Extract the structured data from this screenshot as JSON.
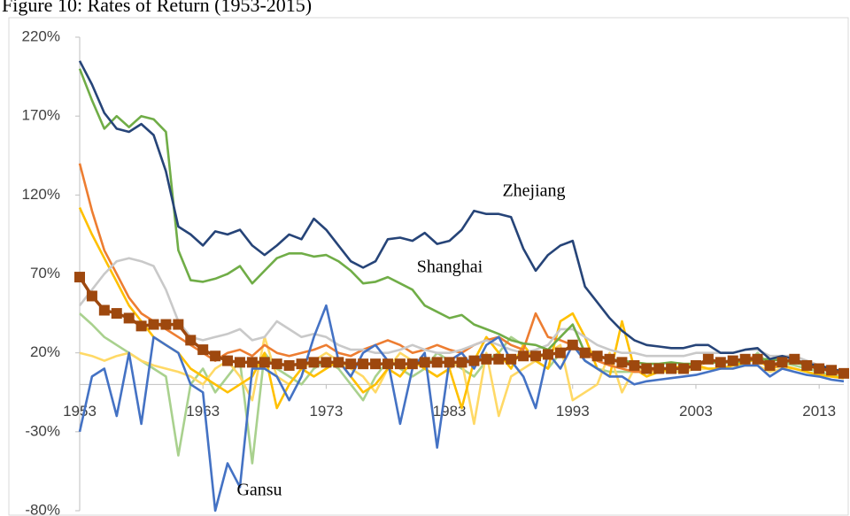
{
  "chart_data": {
    "type": "line",
    "title": "Figure 10: Rates of Return (1953-2015)",
    "annotations": [
      "Zhejiang",
      "Shanghai",
      "Gansu"
    ],
    "x": [
      1953,
      1954,
      1955,
      1956,
      1957,
      1958,
      1959,
      1960,
      1961,
      1962,
      1963,
      1964,
      1965,
      1966,
      1967,
      1968,
      1969,
      1970,
      1971,
      1972,
      1973,
      1974,
      1975,
      1976,
      1977,
      1978,
      1979,
      1980,
      1981,
      1982,
      1983,
      1984,
      1985,
      1986,
      1987,
      1988,
      1989,
      1990,
      1991,
      1992,
      1993,
      1994,
      1995,
      1996,
      1997,
      1998,
      1999,
      2000,
      2001,
      2002,
      2003,
      2004,
      2005,
      2006,
      2007,
      2008,
      2009,
      2010,
      2011,
      2012,
      2013,
      2014,
      2015
    ],
    "xlim": [
      1953,
      2015
    ],
    "xticks": [
      1953,
      1963,
      1973,
      1983,
      1993,
      2003,
      2013
    ],
    "ylim": [
      -80,
      220
    ],
    "yticks": [
      {
        "value": -80,
        "label": "-80%"
      },
      {
        "value": -30,
        "label": "-30%"
      },
      {
        "value": 20,
        "label": "20%"
      },
      {
        "value": 70,
        "label": "70%"
      },
      {
        "value": 120,
        "label": "120%"
      },
      {
        "value": 170,
        "label": "170%"
      },
      {
        "value": 220,
        "label": "220%"
      }
    ],
    "grid": false,
    "series": [
      {
        "color": "#a9d18e",
        "values": [
          45,
          38,
          30,
          25,
          20,
          15,
          10,
          5,
          -45,
          0,
          10,
          -5,
          5,
          15,
          -50,
          20,
          10,
          5,
          0,
          10,
          15,
          10,
          0,
          -10,
          5,
          15,
          10,
          5,
          10,
          20,
          15,
          10,
          5,
          15,
          20,
          30,
          25,
          15,
          10,
          20,
          25,
          15,
          10,
          8,
          8,
          8,
          8,
          8,
          8,
          8,
          10,
          10,
          10,
          12,
          12,
          20,
          12,
          14,
          12,
          10,
          8,
          6,
          5
        ]
      },
      {
        "color": "#ffd966",
        "values": [
          20,
          18,
          15,
          18,
          20,
          15,
          12,
          10,
          8,
          5,
          0,
          10,
          15,
          5,
          -10,
          30,
          5,
          0,
          10,
          15,
          20,
          15,
          10,
          5,
          -5,
          10,
          20,
          15,
          10,
          5,
          10,
          15,
          -25,
          20,
          -20,
          5,
          10,
          15,
          20,
          25,
          -10,
          -5,
          0,
          20,
          -5,
          10,
          8,
          8,
          8,
          8,
          10,
          10,
          10,
          10,
          12,
          12,
          8,
          10,
          10,
          8,
          6,
          5,
          4
        ]
      },
      {
        "color": "#ffc000",
        "values": [
          112,
          95,
          80,
          65,
          50,
          40,
          30,
          25,
          20,
          10,
          5,
          0,
          -5,
          0,
          5,
          20,
          -15,
          0,
          10,
          5,
          10,
          15,
          5,
          -5,
          0,
          10,
          5,
          15,
          10,
          5,
          10,
          -15,
          15,
          30,
          20,
          10,
          25,
          15,
          10,
          40,
          45,
          30,
          10,
          5,
          40,
          10,
          5,
          8,
          10,
          12,
          12,
          10,
          10,
          12,
          14,
          16,
          10,
          12,
          10,
          8,
          6,
          5,
          4
        ]
      },
      {
        "color": "#ed7d31",
        "values": [
          140,
          110,
          85,
          70,
          55,
          45,
          40,
          35,
          30,
          25,
          20,
          15,
          20,
          22,
          18,
          25,
          20,
          18,
          20,
          22,
          25,
          20,
          18,
          22,
          25,
          28,
          25,
          20,
          22,
          25,
          22,
          20,
          25,
          28,
          30,
          25,
          22,
          45,
          30,
          28,
          25,
          20,
          15,
          12,
          10,
          8,
          8,
          10,
          10,
          10,
          12,
          14,
          14,
          15,
          16,
          18,
          10,
          14,
          16,
          12,
          10,
          8,
          6
        ]
      },
      {
        "color": "#c9c9c9",
        "values": [
          50,
          60,
          70,
          78,
          80,
          78,
          75,
          60,
          40,
          30,
          28,
          30,
          32,
          35,
          28,
          30,
          40,
          35,
          30,
          32,
          30,
          25,
          22,
          22,
          20,
          20,
          22,
          25,
          22,
          20,
          20,
          22,
          25,
          28,
          25,
          22,
          20,
          22,
          25,
          35,
          35,
          30,
          25,
          22,
          20,
          20,
          18,
          18,
          18,
          18,
          20,
          20,
          20,
          20,
          22,
          22,
          18,
          18,
          18,
          15,
          12,
          10,
          8
        ]
      },
      {
        "color": "#4472c4",
        "values": [
          -30,
          5,
          10,
          -20,
          20,
          -25,
          30,
          25,
          20,
          0,
          -5,
          -80,
          -50,
          -65,
          10,
          10,
          5,
          -10,
          5,
          30,
          50,
          15,
          5,
          20,
          25,
          15,
          -25,
          10,
          20,
          -40,
          15,
          20,
          10,
          25,
          30,
          15,
          5,
          -15,
          20,
          10,
          25,
          15,
          10,
          5,
          5,
          0,
          2,
          3,
          4,
          5,
          6,
          8,
          10,
          10,
          12,
          12,
          5,
          10,
          8,
          6,
          5,
          3,
          2
        ]
      },
      {
        "color": "#70ad47",
        "values": [
          200,
          180,
          162,
          170,
          163,
          170,
          168,
          160,
          85,
          66,
          65,
          67,
          70,
          75,
          64,
          72,
          80,
          83,
          83,
          81,
          82,
          78,
          72,
          64,
          65,
          68,
          64,
          60,
          50,
          46,
          42,
          44,
          38,
          35,
          32,
          28,
          26,
          25,
          22,
          30,
          38,
          20,
          18,
          16,
          15,
          14,
          13,
          13,
          14,
          13,
          13,
          14,
          14,
          14,
          15,
          16,
          16,
          15,
          14,
          12,
          10,
          9,
          7
        ]
      },
      {
        "color": "#264478",
        "values": [
          205,
          190,
          172,
          162,
          160,
          165,
          158,
          135,
          100,
          95,
          88,
          97,
          95,
          98,
          88,
          82,
          88,
          95,
          92,
          105,
          98,
          88,
          78,
          74,
          78,
          92,
          93,
          91,
          96,
          89,
          91,
          98,
          110,
          108,
          108,
          106,
          86,
          72,
          82,
          88,
          91,
          62,
          52,
          42,
          34,
          28,
          25,
          24,
          23,
          23,
          25,
          25,
          20,
          20,
          22,
          23,
          16,
          18,
          16,
          13,
          12,
          10,
          8
        ]
      },
      {
        "color": "#9e480e",
        "marker": "square",
        "values": [
          68,
          56,
          47,
          45,
          42,
          37,
          38,
          38,
          38,
          28,
          22,
          18,
          15,
          14,
          14,
          14,
          13,
          12,
          13,
          14,
          14,
          14,
          13,
          13,
          13,
          13,
          13,
          13,
          14,
          14,
          14,
          14,
          15,
          16,
          16,
          16,
          18,
          18,
          19,
          20,
          25,
          20,
          18,
          16,
          14,
          12,
          10,
          10,
          10,
          10,
          12,
          16,
          14,
          15,
          16,
          16,
          12,
          14,
          16,
          12,
          10,
          9,
          7
        ]
      }
    ]
  }
}
